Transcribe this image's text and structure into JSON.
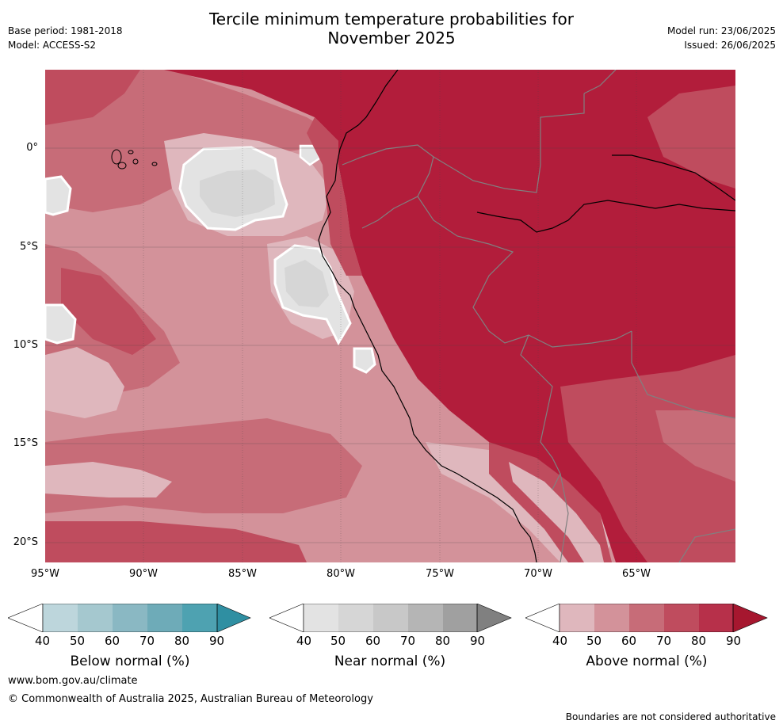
{
  "header": {
    "title_line1": "Tercile minimum temperature probabilities for",
    "title_line2": "November 2025",
    "base_period": "Base period: 1981-2018",
    "model": "Model: ACCESS-S2",
    "model_run": "Model run: 23/06/2025",
    "issued": "Issued: 26/06/2025"
  },
  "map": {
    "lat_labels": [
      "0°",
      "5°S",
      "10°S",
      "15°S",
      "20°S"
    ],
    "lon_labels": [
      "95°W",
      "90°W",
      "85°W",
      "80°W",
      "75°W",
      "70°W",
      "65°W"
    ],
    "colors": {
      "ocean_base": "#d3929a",
      "above_50": "#dfb7bd",
      "above_60": "#d3929a",
      "above_70": "#c76c78",
      "above_80": "#bf4c5e",
      "above_90": "#b21d3b",
      "near_50": "#e3e3e3",
      "near_60": "#d6d6d6"
    }
  },
  "colorbars": [
    {
      "name": "below",
      "title": "Below normal (%)",
      "ticks": [
        "40",
        "50",
        "60",
        "70",
        "80",
        "90"
      ],
      "colors": [
        "#ffffff",
        "#bdd6dc",
        "#a5c8cf",
        "#8ab8c3",
        "#6eabb8",
        "#4ea2b1",
        "#2f8fa2"
      ]
    },
    {
      "name": "near",
      "title": "Near normal (%)",
      "ticks": [
        "40",
        "50",
        "60",
        "70",
        "80",
        "90"
      ],
      "colors": [
        "#ffffff",
        "#e3e3e3",
        "#d6d6d6",
        "#c8c8c8",
        "#b5b5b5",
        "#a0a0a0",
        "#808080"
      ]
    },
    {
      "name": "above",
      "title": "Above normal (%)",
      "ticks": [
        "40",
        "50",
        "60",
        "70",
        "80",
        "90"
      ],
      "colors": [
        "#ffffff",
        "#dfb7bd",
        "#d3929a",
        "#c76c78",
        "#bf4c5e",
        "#b7304a",
        "#a6172f"
      ]
    }
  ],
  "footer": {
    "website": "www.bom.gov.au/climate",
    "copyright": "© Commonwealth of Australia 2025, Australian Bureau of Meteorology",
    "disclaimer": "Boundaries are not considered authoritative"
  }
}
